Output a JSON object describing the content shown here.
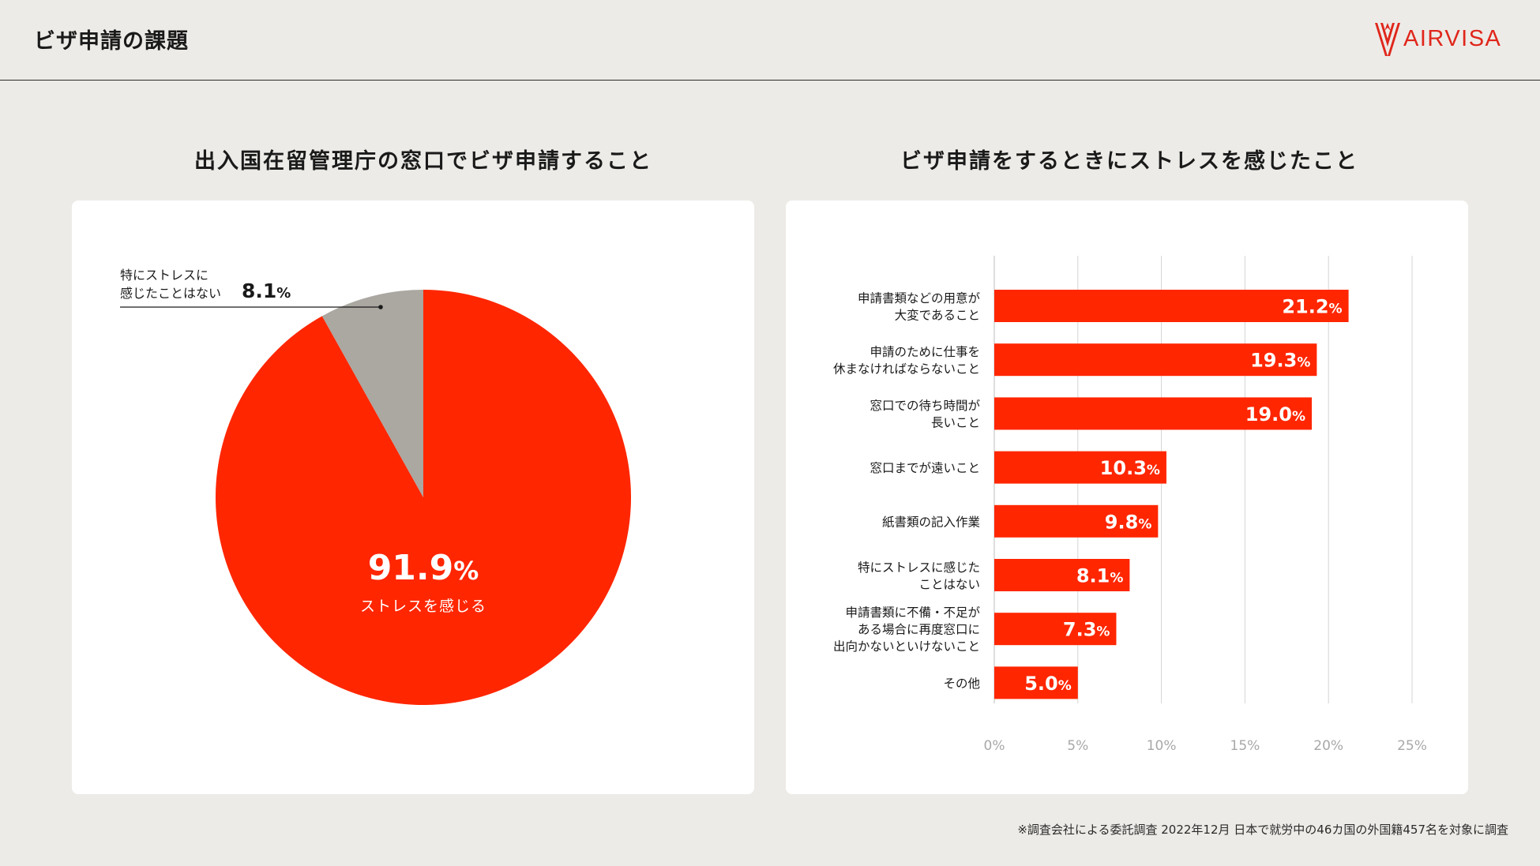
{
  "header": {
    "title": "ビザ申請の課題",
    "logo_text": "AIRVISA",
    "logo_icon": "airvisa-v-mark-icon",
    "accent_color": "#ff2600"
  },
  "footnote": "※調査会社による委託調査 2022年12月 日本で就労中の46カ国の外国籍457名を対象に調査",
  "chart_data": [
    {
      "type": "pie",
      "title": "出入国在留管理庁の窓口でビザ申請すること",
      "slices": [
        {
          "label": "ストレスを感じる",
          "value": 91.9,
          "color": "#ff2600"
        },
        {
          "label_lines": [
            "特にストレスに",
            "感じたことはない"
          ],
          "value": 8.1,
          "color": "#aba7a1"
        }
      ],
      "unit": "%"
    },
    {
      "type": "bar",
      "orientation": "horizontal",
      "title": "ビザ申請をするときにストレスを感じたこと",
      "categories": [
        [
          "申請書類などの用意が",
          "大変であること"
        ],
        [
          "申請のために仕事を",
          "休まなければならないこと"
        ],
        [
          "窓口での待ち時間が",
          "長いこと"
        ],
        [
          "窓口までが遠いこと"
        ],
        [
          "紙書類の記入作業"
        ],
        [
          "特にストレスに感じた",
          "ことはない"
        ],
        [
          "申請書類に不備・不足が",
          "ある場合に再度窓口に",
          "出向かないといけないこと"
        ],
        [
          "その他"
        ]
      ],
      "values": [
        21.2,
        19.3,
        19.0,
        10.3,
        9.8,
        8.1,
        7.3,
        5.0
      ],
      "value_labels": [
        "21.2",
        "19.3",
        "19.0",
        "10.3",
        "9.8",
        "8.1",
        "7.3",
        "5.0"
      ],
      "unit": "%",
      "xlim": [
        0,
        25
      ],
      "ticks": [
        0,
        5,
        10,
        15,
        20,
        25
      ],
      "tick_labels": [
        "0%",
        "5%",
        "10%",
        "15%",
        "20%",
        "25%"
      ],
      "grid": "vertical",
      "bar_color": "#ff2600"
    }
  ]
}
